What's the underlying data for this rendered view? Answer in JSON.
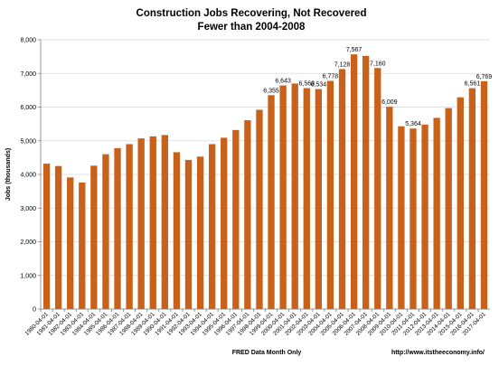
{
  "chart_data": {
    "type": "bar",
    "title": "Construction Jobs Recovering, Not Recovered",
    "subtitle": "Fewer than 2004-2008",
    "xlabel": "FRED Data  Month Only",
    "ylabel": "Jobs (thousands)",
    "source": "http://www.itstheeconomy.info/",
    "ylim": [
      0,
      8000
    ],
    "yticks": [
      "0",
      "1,000",
      "2,000",
      "3,000",
      "4,000",
      "5,000",
      "6,000",
      "7,000",
      "8,000"
    ],
    "grid": true,
    "bar_color": "#c8611a",
    "categories": [
      "1980-04-01",
      "1981-04-01",
      "1982-04-01",
      "1983-04-01",
      "1984-04-01",
      "1985-04-01",
      "1986-04-01",
      "1987-04-01",
      "1988-04-01",
      "1989-04-01",
      "1990-04-01",
      "1991-04-01",
      "1992-04-01",
      "1993-04-01",
      "1994-04-01",
      "1995-04-01",
      "1996-04-01",
      "1997-04-01",
      "1998-04-01",
      "1999-04-01",
      "2000-04-01",
      "2001-04-01",
      "2002-04-01",
      "2003-04-01",
      "2004-04-01",
      "2005-04-01",
      "2006-04-01",
      "2007-04-01",
      "2008-04-01",
      "2009-04-01",
      "2010-04-01",
      "2011-04-01",
      "2012-04-01",
      "2013-04-01",
      "2014-04-01",
      "2015-04-01",
      "2016-04-01",
      "2017-04-01"
    ],
    "values": [
      4320,
      4250,
      3910,
      3760,
      4260,
      4600,
      4780,
      4900,
      5070,
      5130,
      5170,
      4660,
      4430,
      4530,
      4900,
      5090,
      5320,
      5610,
      5920,
      6355,
      6643,
      6700,
      6563,
      6534,
      6778,
      7128,
      7567,
      7520,
      7160,
      6009,
      5430,
      5364,
      5480,
      5680,
      5970,
      6290,
      6561,
      6769
    ],
    "data_labels": [
      "",
      "",
      "",
      "",
      "",
      "",
      "",
      "",
      "",
      "",
      "",
      "",
      "",
      "",
      "",
      "",
      "",
      "",
      "",
      "6,355",
      "6,643",
      "",
      "6,563",
      "6,534",
      "6,778",
      "7,128",
      "7,567",
      "",
      "7,160",
      "6,009",
      "",
      "5,364",
      "",
      "",
      "",
      "",
      "6,561",
      "6,769"
    ]
  }
}
